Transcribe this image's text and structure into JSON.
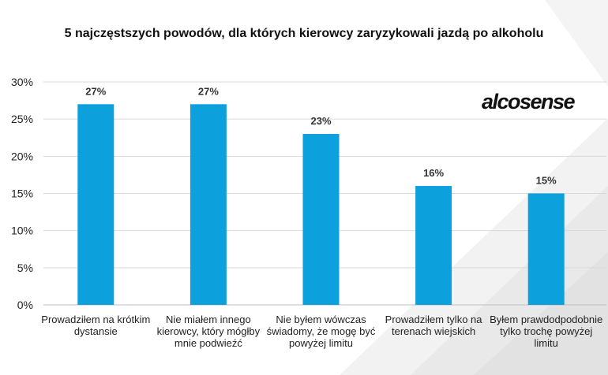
{
  "chart_data": {
    "type": "bar",
    "title": "5 najczęstszych powodów, dla których kierowcy zaryzykowali jazdą po alkoholu",
    "categories": [
      "Prowadziłem na krótkim dystansie",
      "Nie miałem innego kierowcy, który mógłby mnie podwieźć",
      "Nie byłem wówczas świadomy, że mogę być powyżej limitu",
      "Prowadziłem tylko na terenach wiejskich",
      "Byłem prawdodpodobnie tylko trochę powyżej limitu"
    ],
    "values": [
      27,
      27,
      23,
      16,
      15
    ],
    "data_labels": [
      "27%",
      "27%",
      "23%",
      "16%",
      "15%"
    ],
    "y_ticks": [
      "0%",
      "5%",
      "10%",
      "15%",
      "20%",
      "25%",
      "30%"
    ],
    "ylim": [
      0,
      30
    ],
    "xlabel": "",
    "ylabel": "",
    "grid": true,
    "legend": "none",
    "colors": {
      "bar": "#0ca0dc",
      "grid": "#d9d9d9",
      "axis": "#bfbfbf",
      "text": "#222222"
    }
  },
  "logo": {
    "text": "alcosense",
    "icon": "alcosense-logo"
  }
}
